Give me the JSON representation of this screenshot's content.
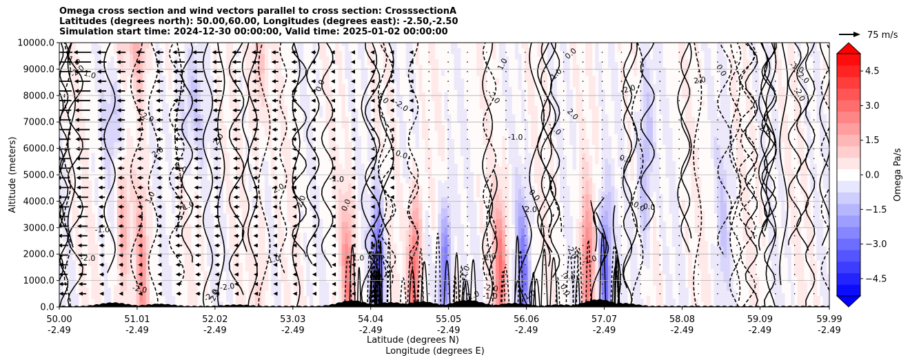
{
  "chart_data": {
    "type": "heatmap",
    "title_lines": [
      "Omega cross section and wind vectors parallel to cross section: CrosssectionA",
      "Latitudes (degrees north): 50.00,60.00, Longitudes (degrees east): -2.50,-2.50",
      "Simulation start time: 2024-12-30 00:00:00, Valid time: 2025-01-02 00:00:00"
    ],
    "ylabel": "Altitude (meters)",
    "xlabel_line1": "Latitude (degrees N)",
    "xlabel_line2": "Longitude (degrees E)",
    "ylim": [
      0,
      10000
    ],
    "xlim": [
      50.0,
      59.99
    ],
    "y_ticks": [
      {
        "value": 0,
        "label": "0.0"
      },
      {
        "value": 1000,
        "label": "1000.0"
      },
      {
        "value": 2000,
        "label": "2000.0"
      },
      {
        "value": 3000,
        "label": "3000.0"
      },
      {
        "value": 4000,
        "label": "4000.0"
      },
      {
        "value": 5000,
        "label": "5000.0"
      },
      {
        "value": 6000,
        "label": "6000.0"
      },
      {
        "value": 7000,
        "label": "7000.0"
      },
      {
        "value": 8000,
        "label": "8000.0"
      },
      {
        "value": 9000,
        "label": "9000.0"
      },
      {
        "value": 10000,
        "label": "10000.0"
      }
    ],
    "x_ticks": [
      {
        "value": 50.0,
        "lat": "50.00",
        "lon": "-2.49"
      },
      {
        "value": 51.01,
        "lat": "51.01",
        "lon": "-2.49"
      },
      {
        "value": 52.02,
        "lat": "52.02",
        "lon": "-2.49"
      },
      {
        "value": 53.03,
        "lat": "53.03",
        "lon": "-2.49"
      },
      {
        "value": 54.04,
        "lat": "54.04",
        "lon": "-2.49"
      },
      {
        "value": 55.05,
        "lat": "55.05",
        "lon": "-2.49"
      },
      {
        "value": 56.06,
        "lat": "56.06",
        "lon": "-2.49"
      },
      {
        "value": 57.07,
        "lat": "57.07",
        "lon": "-2.49"
      },
      {
        "value": 58.08,
        "lat": "58.08",
        "lon": "-2.49"
      },
      {
        "value": 59.09,
        "lat": "59.09",
        "lon": "-2.49"
      },
      {
        "value": 59.99,
        "lat": "59.99",
        "lon": "-2.49"
      }
    ],
    "grid": true,
    "colorbar": {
      "label": "Omega Pa/s",
      "range": [
        -5.25,
        5.25
      ],
      "extend": "both",
      "ticks": [
        {
          "value": 4.5,
          "label": "4.5"
        },
        {
          "value": 3.0,
          "label": "3.0"
        },
        {
          "value": 1.5,
          "label": "1.5"
        },
        {
          "value": 0.0,
          "label": "0.0"
        },
        {
          "value": -1.5,
          "label": "−1.5"
        },
        {
          "value": -3.0,
          "label": "−3.0"
        },
        {
          "value": -4.5,
          "label": "−4.5"
        }
      ],
      "low_color": "#0000ff",
      "mid_color": "#ffffff",
      "high_color": "#ff0000",
      "levels": 21
    },
    "quiver_key": {
      "label": "75 m/s",
      "speed": 75
    },
    "contour_labels": [
      "0.0",
      "1.0",
      "2.0",
      "-1.0",
      "-2.0",
      "-1.0",
      "-2.0"
    ],
    "strong_bands_lat": [
      {
        "lat": 50.8,
        "omega": 2.0
      },
      {
        "lat": 51.05,
        "omega": 2.5
      },
      {
        "lat": 52.6,
        "omega": 1.5
      },
      {
        "lat": 53.75,
        "omega": 3.0
      },
      {
        "lat": 54.15,
        "omega": -4.5
      },
      {
        "lat": 54.62,
        "omega": 4.5
      },
      {
        "lat": 55.0,
        "omega": -4.0
      },
      {
        "lat": 55.7,
        "omega": 3.5
      },
      {
        "lat": 56.0,
        "omega": -3.5
      },
      {
        "lat": 56.85,
        "omega": 4.0
      },
      {
        "lat": 57.1,
        "omega": -4.5
      },
      {
        "lat": 57.6,
        "omega": -2.0
      },
      {
        "lat": 58.6,
        "omega": -1.0
      }
    ]
  }
}
